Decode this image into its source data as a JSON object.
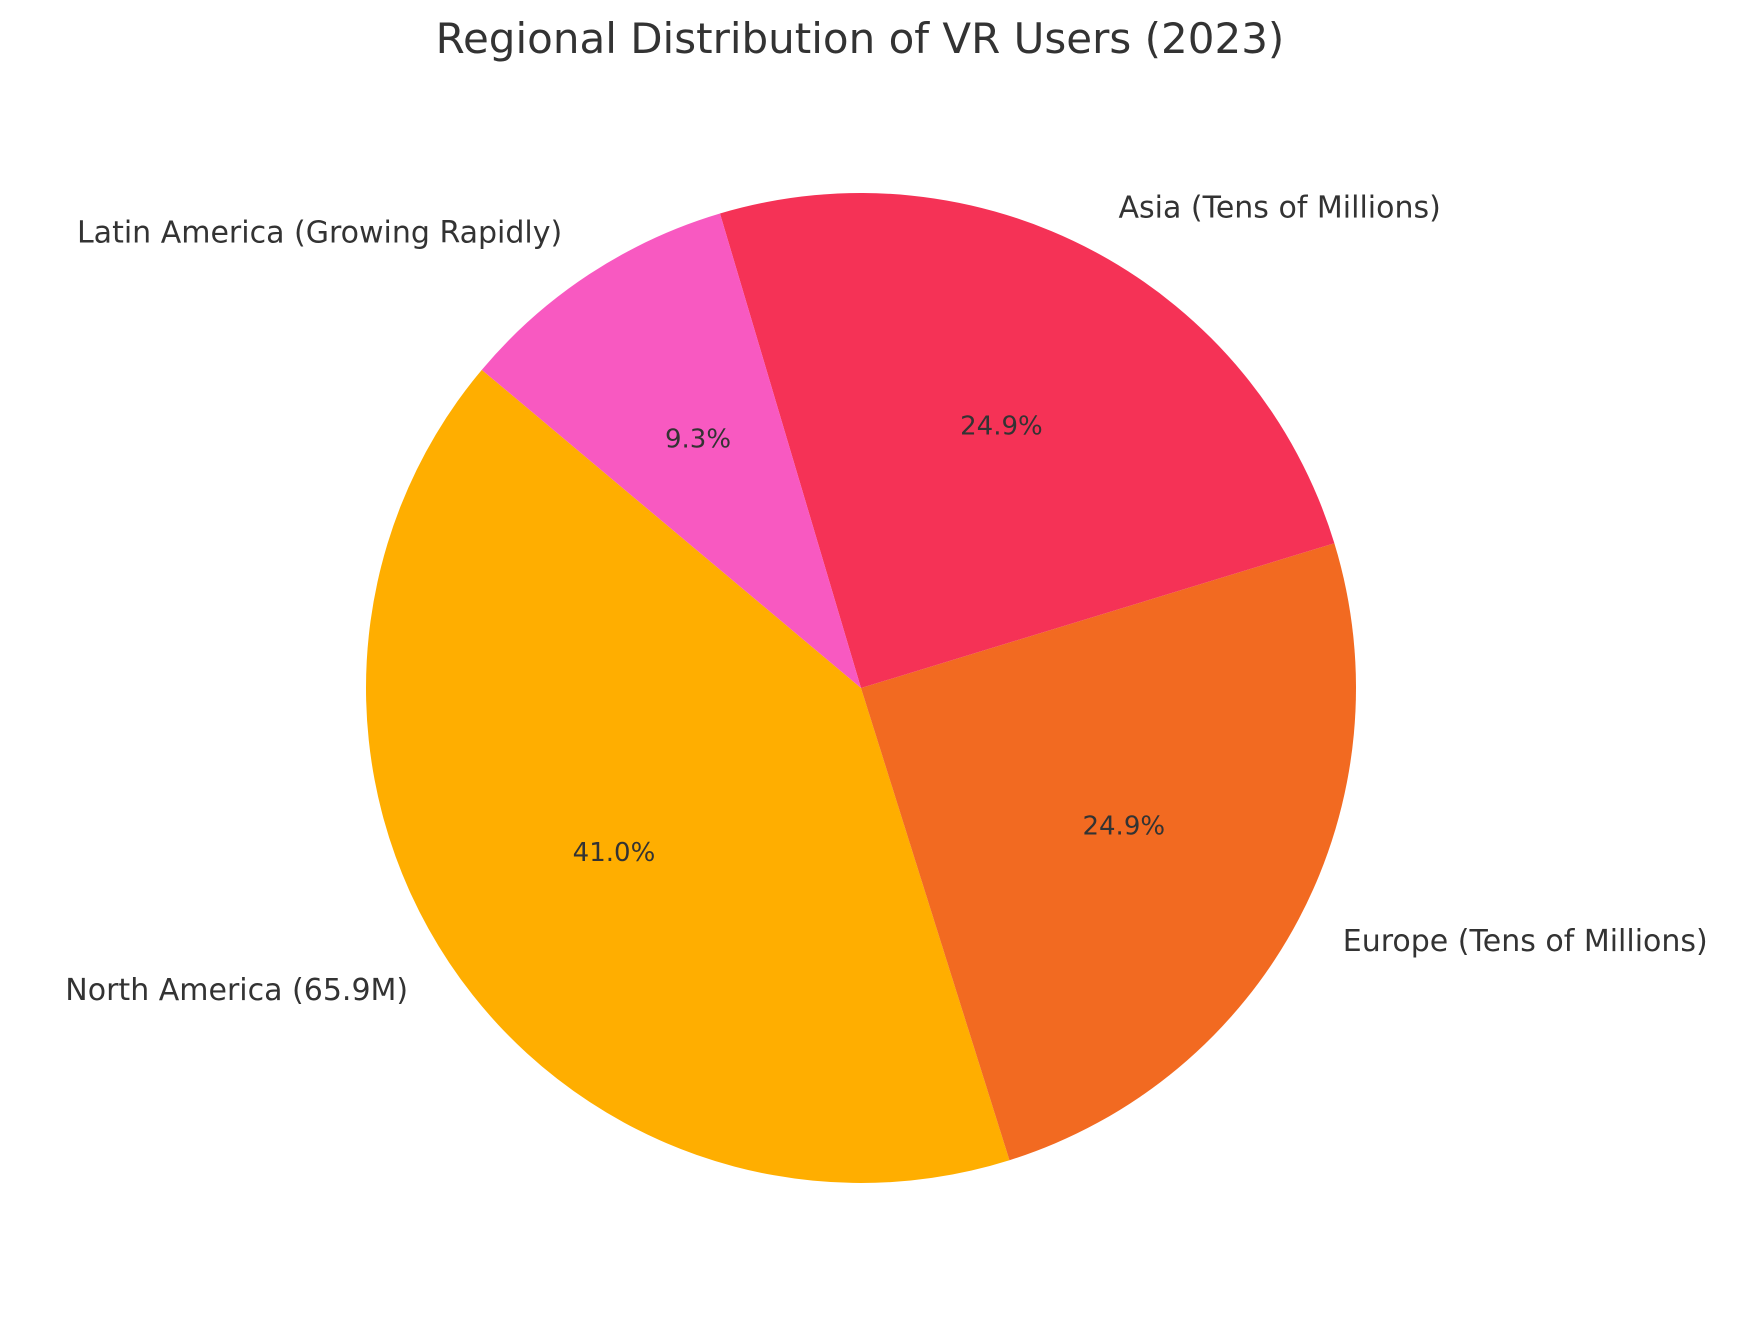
{
  "chart_data": {
    "type": "pie",
    "title": "Regional Distribution of VR Users (2023)",
    "slices": [
      {
        "label": "North America (65.9M)",
        "value": 41.0,
        "pct_label": "41.0%",
        "color": "#FFAE00"
      },
      {
        "label": "Europe (Tens of Millions)",
        "value": 24.9,
        "pct_label": "24.9%",
        "color": "#F26A21"
      },
      {
        "label": "Asia (Tens of Millions)",
        "value": 24.9,
        "pct_label": "24.9%",
        "color": "#F53256"
      },
      {
        "label": "Latin America (Growing Rapidly)",
        "value": 9.3,
        "pct_label": "9.3%",
        "color": "#F859C1"
      }
    ],
    "start_angle_deg": 140,
    "direction": "counterclockwise"
  }
}
